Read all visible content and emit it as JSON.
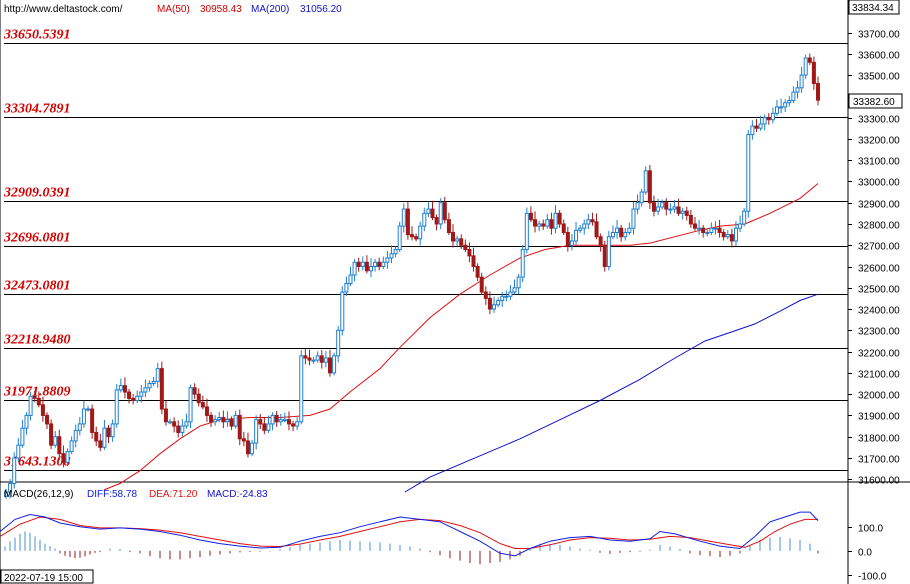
{
  "header": {
    "url": "http://www.deltastock.com/",
    "ma50_label": "MA(50)",
    "ma50_value": "30958.43",
    "ma200_label": "MA(200)",
    "ma200_value": "31056.20",
    "top_price": "33834.34",
    "current_price": "33382.60"
  },
  "macd_header": {
    "name": "MACD(26,12,9)",
    "diff": "DIFF:58.78",
    "dea": "DEA:71.20",
    "macd": "MACD:-24.83"
  },
  "date_label": "2022-07-19 15:00",
  "colors": {
    "up": "#1e7fd0",
    "down": "#a01818",
    "ma50": "#e01010",
    "ma200": "#1010cc",
    "level_text": "#d40000",
    "diff_line": "#1020e0",
    "dea_line": "#e01010",
    "hist_pos": "#4a90d9",
    "hist_neg": "#8b1a1a"
  },
  "chart_data": {
    "type": "candlestick",
    "ylim": [
      31540,
      33740
    ],
    "yticks": [
      31600,
      31700,
      31800,
      31900,
      32000,
      32100,
      32200,
      32300,
      32400,
      32500,
      32600,
      32700,
      32800,
      32900,
      33000,
      33100,
      33200,
      33300,
      33400,
      33500,
      33600,
      33700
    ],
    "levels": [
      {
        "label": "33650.5391",
        "value": 33650.5391
      },
      {
        "label": "33304.7891",
        "value": 33304.7891
      },
      {
        "label": "32909.0391",
        "value": 32909.0391
      },
      {
        "label": "32696.0801",
        "value": 32696.0801
      },
      {
        "label": "32473.0801",
        "value": 32473.0801
      },
      {
        "label": "32218.9480",
        "value": 32218.948
      },
      {
        "label": "31971.8809",
        "value": 31971.8809
      },
      {
        "label": "31643.1308",
        "value": 31643.1308
      }
    ],
    "closes": [
      31540,
      31580,
      31700,
      31760,
      31840,
      31900,
      31990,
      31980,
      31950,
      31900,
      31860,
      31760,
      31800,
      31720,
      31680,
      31730,
      31780,
      31830,
      31860,
      31930,
      31930,
      31820,
      31780,
      31750,
      31840,
      31800,
      31860,
      32020,
      32040,
      32010,
      31980,
      31970,
      31990,
      32010,
      32030,
      32050,
      32060,
      32120,
      31930,
      31870,
      31870,
      31850,
      31820,
      31850,
      31870,
      32030,
      32000,
      31960,
      31940,
      31900,
      31870,
      31880,
      31890,
      31870,
      31880,
      31850,
      31900,
      31790,
      31780,
      31720,
      31770,
      31880,
      31860,
      31830,
      31860,
      31900,
      31870,
      31880,
      31880,
      31860,
      31850,
      31870,
      32180,
      32170,
      32160,
      32160,
      32180,
      32150,
      32170,
      32100,
      32180,
      32300,
      32480,
      32520,
      32560,
      32620,
      32600,
      32620,
      32580,
      32600,
      32620,
      32600,
      32620,
      32640,
      32660,
      32680,
      32790,
      32870,
      32750,
      32740,
      32730,
      32790,
      32850,
      32870,
      32830,
      32800,
      32900,
      32820,
      32760,
      32720,
      32730,
      32700,
      32680,
      32650,
      32600,
      32550,
      32480,
      32450,
      32400,
      32420,
      32440,
      32460,
      32460,
      32480,
      32500,
      32550,
      32680,
      32850,
      32820,
      32790,
      32800,
      32790,
      32820,
      32780,
      32850,
      32800,
      32760,
      32700,
      32720,
      32770,
      32780,
      32800,
      32820,
      32810,
      32740,
      32700,
      32600,
      32740,
      32760,
      32780,
      32740,
      32760,
      32780,
      32870,
      32900,
      32950,
      33050,
      32900,
      32860,
      32880,
      32900,
      32870,
      32870,
      32880,
      32850,
      32860,
      32840,
      32800,
      32780,
      32780,
      32760,
      32760,
      32780,
      32780,
      32760,
      32740,
      32750,
      32720,
      32780,
      32800,
      32860,
      33220,
      33260,
      33250,
      33270,
      33300,
      33290,
      33320,
      33350,
      33350,
      33370,
      33380,
      33420,
      33440,
      33500,
      33580,
      33560,
      33460,
      33382
    ],
    "ma50": [
      [
        104,
        31550
      ],
      [
        120,
        31580
      ],
      [
        140,
        31640
      ],
      [
        160,
        31720
      ],
      [
        180,
        31790
      ],
      [
        200,
        31850
      ],
      [
        220,
        31880
      ],
      [
        250,
        31890
      ],
      [
        280,
        31890
      ],
      [
        310,
        31900
      ],
      [
        330,
        31930
      ],
      [
        350,
        32010
      ],
      [
        380,
        32120
      ],
      [
        400,
        32220
      ],
      [
        430,
        32360
      ],
      [
        460,
        32470
      ],
      [
        490,
        32560
      ],
      [
        520,
        32640
      ],
      [
        545,
        32680
      ],
      [
        570,
        32700
      ],
      [
        600,
        32700
      ],
      [
        630,
        32700
      ],
      [
        650,
        32710
      ],
      [
        675,
        32740
      ],
      [
        700,
        32770
      ],
      [
        720,
        32790
      ],
      [
        745,
        32800
      ],
      [
        770,
        32850
      ],
      [
        800,
        32920
      ],
      [
        818,
        32990
      ]
    ],
    "ma200": [
      [
        405,
        31540
      ],
      [
        430,
        31610
      ],
      [
        470,
        31690
      ],
      [
        520,
        31790
      ],
      [
        560,
        31880
      ],
      [
        600,
        31970
      ],
      [
        640,
        32070
      ],
      [
        675,
        32170
      ],
      [
        705,
        32250
      ],
      [
        730,
        32290
      ],
      [
        755,
        32330
      ],
      [
        780,
        32390
      ],
      [
        800,
        32440
      ],
      [
        818,
        32470
      ]
    ]
  },
  "macd_data": {
    "ylim": [
      -120,
      210
    ],
    "yticks": [
      {
        "label": "100.0",
        "value": 100
      },
      {
        "label": "0.0",
        "value": 0
      },
      {
        "label": "-100.0",
        "value": -100
      }
    ],
    "diff": [
      [
        0,
        80
      ],
      [
        15,
        130
      ],
      [
        30,
        150
      ],
      [
        45,
        140
      ],
      [
        60,
        115
      ],
      [
        80,
        100
      ],
      [
        100,
        90
      ],
      [
        120,
        95
      ],
      [
        140,
        90
      ],
      [
        160,
        80
      ],
      [
        180,
        65
      ],
      [
        200,
        45
      ],
      [
        220,
        30
      ],
      [
        240,
        20
      ],
      [
        260,
        12
      ],
      [
        280,
        15
      ],
      [
        300,
        40
      ],
      [
        320,
        60
      ],
      [
        340,
        75
      ],
      [
        360,
        100
      ],
      [
        380,
        120
      ],
      [
        400,
        140
      ],
      [
        420,
        130
      ],
      [
        440,
        120
      ],
      [
        460,
        80
      ],
      [
        480,
        40
      ],
      [
        500,
        -10
      ],
      [
        515,
        -20
      ],
      [
        530,
        10
      ],
      [
        550,
        40
      ],
      [
        570,
        55
      ],
      [
        590,
        60
      ],
      [
        610,
        45
      ],
      [
        630,
        40
      ],
      [
        650,
        50
      ],
      [
        660,
        80
      ],
      [
        675,
        70
      ],
      [
        700,
        40
      ],
      [
        720,
        20
      ],
      [
        740,
        10
      ],
      [
        755,
        60
      ],
      [
        770,
        120
      ],
      [
        785,
        140
      ],
      [
        800,
        160
      ],
      [
        810,
        160
      ],
      [
        818,
        125
      ]
    ],
    "dea": [
      [
        0,
        60
      ],
      [
        20,
        110
      ],
      [
        40,
        140
      ],
      [
        60,
        130
      ],
      [
        80,
        105
      ],
      [
        100,
        95
      ],
      [
        120,
        95
      ],
      [
        140,
        92
      ],
      [
        160,
        86
      ],
      [
        180,
        75
      ],
      [
        200,
        60
      ],
      [
        220,
        45
      ],
      [
        240,
        30
      ],
      [
        260,
        20
      ],
      [
        280,
        18
      ],
      [
        300,
        28
      ],
      [
        320,
        45
      ],
      [
        340,
        60
      ],
      [
        360,
        80
      ],
      [
        380,
        100
      ],
      [
        400,
        120
      ],
      [
        420,
        130
      ],
      [
        440,
        125
      ],
      [
        460,
        105
      ],
      [
        480,
        75
      ],
      [
        500,
        30
      ],
      [
        515,
        10
      ],
      [
        530,
        10
      ],
      [
        550,
        25
      ],
      [
        570,
        45
      ],
      [
        590,
        55
      ],
      [
        610,
        52
      ],
      [
        630,
        45
      ],
      [
        650,
        48
      ],
      [
        670,
        60
      ],
      [
        690,
        55
      ],
      [
        710,
        40
      ],
      [
        730,
        25
      ],
      [
        745,
        15
      ],
      [
        760,
        40
      ],
      [
        775,
        80
      ],
      [
        790,
        110
      ],
      [
        805,
        130
      ],
      [
        818,
        130
      ]
    ],
    "hist": [
      [
        5,
        18
      ],
      [
        10,
        40
      ],
      [
        15,
        55
      ],
      [
        20,
        70
      ],
      [
        25,
        80
      ],
      [
        30,
        75
      ],
      [
        35,
        60
      ],
      [
        40,
        45
      ],
      [
        45,
        30
      ],
      [
        50,
        20
      ],
      [
        55,
        10
      ],
      [
        60,
        -10
      ],
      [
        65,
        -20
      ],
      [
        70,
        -25
      ],
      [
        75,
        -30
      ],
      [
        80,
        -28
      ],
      [
        85,
        -22
      ],
      [
        90,
        -15
      ],
      [
        95,
        -8
      ],
      [
        100,
        -5
      ],
      [
        110,
        10
      ],
      [
        120,
        8
      ],
      [
        130,
        -5
      ],
      [
        140,
        -10
      ],
      [
        150,
        -22
      ],
      [
        160,
        -30
      ],
      [
        170,
        -35
      ],
      [
        180,
        -35
      ],
      [
        190,
        -30
      ],
      [
        200,
        -25
      ],
      [
        210,
        -20
      ],
      [
        220,
        -15
      ],
      [
        230,
        -10
      ],
      [
        240,
        -6
      ],
      [
        250,
        -4
      ],
      [
        260,
        -3
      ],
      [
        270,
        -2
      ],
      [
        280,
        8
      ],
      [
        290,
        15
      ],
      [
        300,
        25
      ],
      [
        310,
        30
      ],
      [
        320,
        35
      ],
      [
        330,
        40
      ],
      [
        340,
        45
      ],
      [
        350,
        42
      ],
      [
        360,
        40
      ],
      [
        370,
        38
      ],
      [
        380,
        35
      ],
      [
        390,
        30
      ],
      [
        400,
        25
      ],
      [
        410,
        18
      ],
      [
        420,
        10
      ],
      [
        430,
        -5
      ],
      [
        440,
        -18
      ],
      [
        450,
        -30
      ],
      [
        460,
        -40
      ],
      [
        470,
        -50
      ],
      [
        480,
        -55
      ],
      [
        490,
        -50
      ],
      [
        500,
        -45
      ],
      [
        510,
        -35
      ],
      [
        520,
        -20
      ],
      [
        530,
        10
      ],
      [
        540,
        30
      ],
      [
        550,
        30
      ],
      [
        560,
        25
      ],
      [
        570,
        18
      ],
      [
        580,
        10
      ],
      [
        590,
        5
      ],
      [
        600,
        -8
      ],
      [
        610,
        -12
      ],
      [
        620,
        -8
      ],
      [
        630,
        -5
      ],
      [
        640,
        -3
      ],
      [
        650,
        5
      ],
      [
        660,
        25
      ],
      [
        670,
        18
      ],
      [
        680,
        8
      ],
      [
        690,
        -10
      ],
      [
        700,
        -18
      ],
      [
        710,
        -22
      ],
      [
        720,
        -25
      ],
      [
        730,
        -20
      ],
      [
        740,
        -10
      ],
      [
        750,
        20
      ],
      [
        760,
        45
      ],
      [
        770,
        55
      ],
      [
        780,
        58
      ],
      [
        790,
        52
      ],
      [
        800,
        45
      ],
      [
        810,
        30
      ],
      [
        818,
        -10
      ]
    ]
  }
}
